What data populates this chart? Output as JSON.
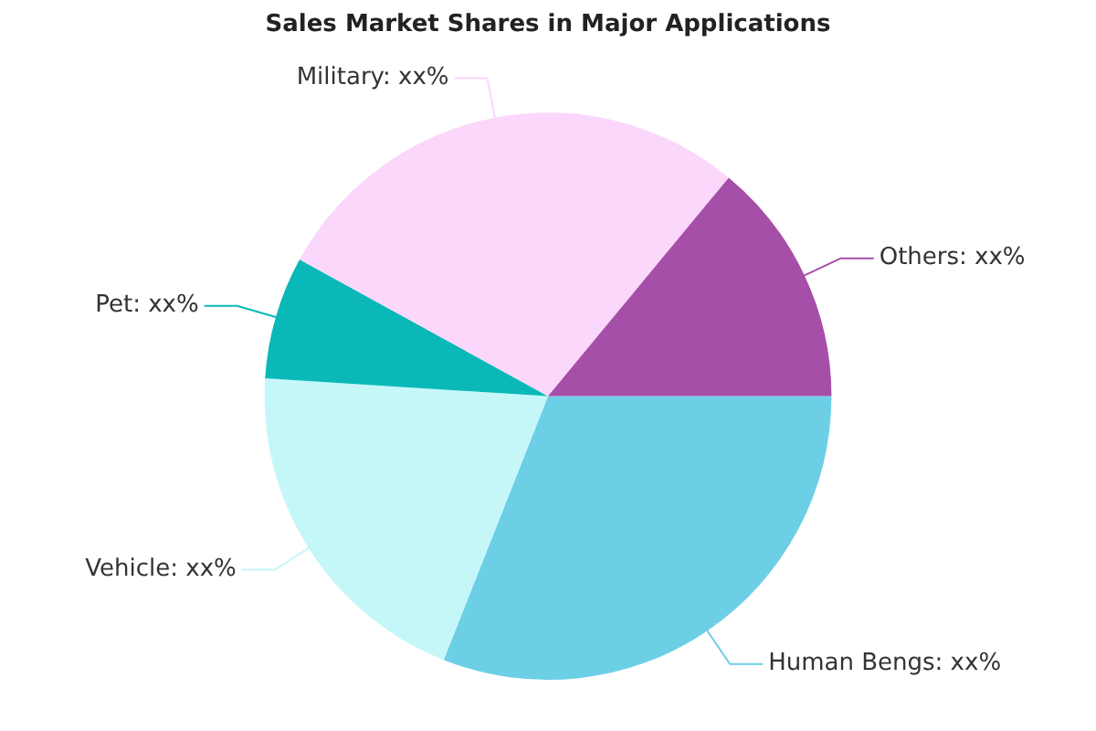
{
  "chart_data": {
    "type": "pie",
    "title": "Sales Market Shares in Major Applications",
    "categories": [
      "Human Bengs",
      "Vehicle",
      "Pet",
      "Military",
      "Others"
    ],
    "values": [
      31,
      20,
      7,
      28,
      14
    ],
    "value_labels": [
      "xx%",
      "xx%",
      "xx%",
      "xx%",
      "xx%"
    ],
    "colors": [
      "#6dcfe6",
      "#c5f7f9",
      "#0ab8b8",
      "#fbd7fb",
      "#a64fa8"
    ],
    "legend": false
  }
}
